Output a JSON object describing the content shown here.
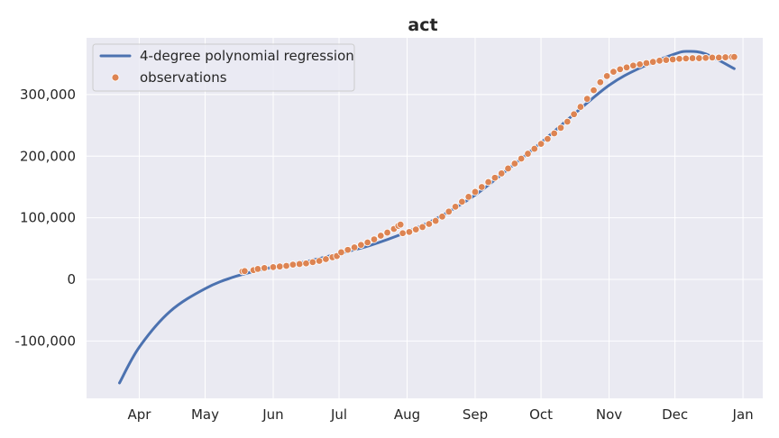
{
  "chart_data": {
    "type": "line",
    "title": "act",
    "xlabel": "",
    "ylabel": "",
    "x_axis": {
      "type": "date",
      "range": [
        "2020-03-08",
        "2021-01-10"
      ],
      "ticks": [
        {
          "date": "2020-04-01",
          "label": "Apr"
        },
        {
          "date": "2020-05-01",
          "label": "May"
        },
        {
          "date": "2020-06-01",
          "label": "Jun"
        },
        {
          "date": "2020-07-01",
          "label": "Jul"
        },
        {
          "date": "2020-08-01",
          "label": "Aug"
        },
        {
          "date": "2020-09-01",
          "label": "Sep"
        },
        {
          "date": "2020-10-01",
          "label": "Oct"
        },
        {
          "date": "2020-11-01",
          "label": "Nov"
        },
        {
          "date": "2020-12-01",
          "label": "Dec"
        },
        {
          "date": "2021-01-01",
          "label": "Jan"
        }
      ]
    },
    "y_axis": {
      "range": [
        -193000,
        392000
      ],
      "ticks": [
        {
          "value": -100000,
          "label": "-100,000"
        },
        {
          "value": 0,
          "label": "0"
        },
        {
          "value": 100000,
          "label": "100,000"
        },
        {
          "value": 200000,
          "label": "200,000"
        },
        {
          "value": 300000,
          "label": "300,000"
        }
      ]
    },
    "grid": true,
    "legend": {
      "placement": "top-left",
      "entries": [
        {
          "label": "4-degree polynomial regression",
          "kind": "line",
          "color": "#4c72b0"
        },
        {
          "label": "observations",
          "kind": "marker",
          "color": "#dd8452"
        }
      ]
    },
    "series": [
      {
        "name": "4-degree polynomial regression",
        "kind": "line",
        "color": "#4c72b0",
        "points": [
          [
            "2020-03-23",
            -168000
          ],
          [
            "2020-04-01",
            -110000
          ],
          [
            "2020-04-15",
            -52000
          ],
          [
            "2020-05-01",
            -15000
          ],
          [
            "2020-05-15",
            5000
          ],
          [
            "2020-06-01",
            20000
          ],
          [
            "2020-06-15",
            28000
          ],
          [
            "2020-07-01",
            42000
          ],
          [
            "2020-07-15",
            55000
          ],
          [
            "2020-08-01",
            77000
          ],
          [
            "2020-08-15",
            100000
          ],
          [
            "2020-09-01",
            137000
          ],
          [
            "2020-09-15",
            176000
          ],
          [
            "2020-10-01",
            222000
          ],
          [
            "2020-10-15",
            265000
          ],
          [
            "2020-11-01",
            315000
          ],
          [
            "2020-11-15",
            343000
          ],
          [
            "2020-12-01",
            366000
          ],
          [
            "2020-12-07",
            370000
          ],
          [
            "2020-12-15",
            366000
          ],
          [
            "2020-12-28",
            342000
          ]
        ]
      },
      {
        "name": "observations",
        "kind": "scatter",
        "color": "#dd8452",
        "points": [
          [
            "2020-05-18",
            13000
          ],
          [
            "2020-05-19",
            13500
          ],
          [
            "2020-05-23",
            15000
          ],
          [
            "2020-05-25",
            17000
          ],
          [
            "2020-05-28",
            18500
          ],
          [
            "2020-06-01",
            20000
          ],
          [
            "2020-06-04",
            21000
          ],
          [
            "2020-06-07",
            22000
          ],
          [
            "2020-06-10",
            24000
          ],
          [
            "2020-06-13",
            25000
          ],
          [
            "2020-06-16",
            26000
          ],
          [
            "2020-06-19",
            28000
          ],
          [
            "2020-06-22",
            30000
          ],
          [
            "2020-06-25",
            33000
          ],
          [
            "2020-06-28",
            36000
          ],
          [
            "2020-06-30",
            38000
          ],
          [
            "2020-07-02",
            44000
          ],
          [
            "2020-07-05",
            48000
          ],
          [
            "2020-07-08",
            52000
          ],
          [
            "2020-07-11",
            56000
          ],
          [
            "2020-07-14",
            60000
          ],
          [
            "2020-07-17",
            65000
          ],
          [
            "2020-07-20",
            71000
          ],
          [
            "2020-07-23",
            76000
          ],
          [
            "2020-07-26",
            82000
          ],
          [
            "2020-07-28",
            87000
          ],
          [
            "2020-07-29",
            89000
          ],
          [
            "2020-07-30",
            75000
          ],
          [
            "2020-08-02",
            77000
          ],
          [
            "2020-08-05",
            81000
          ],
          [
            "2020-08-08",
            85000
          ],
          [
            "2020-08-11",
            90000
          ],
          [
            "2020-08-14",
            95000
          ],
          [
            "2020-08-17",
            102000
          ],
          [
            "2020-08-20",
            110000
          ],
          [
            "2020-08-23",
            118000
          ],
          [
            "2020-08-26",
            126000
          ],
          [
            "2020-08-29",
            134000
          ],
          [
            "2020-09-01",
            142000
          ],
          [
            "2020-09-04",
            150000
          ],
          [
            "2020-09-07",
            158000
          ],
          [
            "2020-09-10",
            165000
          ],
          [
            "2020-09-13",
            172000
          ],
          [
            "2020-09-16",
            180000
          ],
          [
            "2020-09-19",
            188000
          ],
          [
            "2020-09-22",
            196000
          ],
          [
            "2020-09-25",
            204000
          ],
          [
            "2020-09-28",
            212000
          ],
          [
            "2020-10-01",
            220000
          ],
          [
            "2020-10-04",
            228000
          ],
          [
            "2020-10-07",
            237000
          ],
          [
            "2020-10-10",
            246000
          ],
          [
            "2020-10-13",
            256000
          ],
          [
            "2020-10-16",
            268000
          ],
          [
            "2020-10-19",
            280000
          ],
          [
            "2020-10-22",
            293000
          ],
          [
            "2020-10-25",
            307000
          ],
          [
            "2020-10-28",
            320000
          ],
          [
            "2020-10-31",
            330000
          ],
          [
            "2020-11-03",
            337000
          ],
          [
            "2020-11-06",
            341000
          ],
          [
            "2020-11-09",
            344000
          ],
          [
            "2020-11-12",
            347000
          ],
          [
            "2020-11-15",
            349000
          ],
          [
            "2020-11-18",
            351000
          ],
          [
            "2020-11-21",
            353000
          ],
          [
            "2020-11-24",
            355000
          ],
          [
            "2020-11-27",
            356000
          ],
          [
            "2020-11-30",
            357000
          ],
          [
            "2020-12-03",
            358000
          ],
          [
            "2020-12-06",
            358500
          ],
          [
            "2020-12-09",
            359000
          ],
          [
            "2020-12-12",
            359000
          ],
          [
            "2020-12-15",
            359500
          ],
          [
            "2020-12-18",
            360000
          ],
          [
            "2020-12-21",
            360000
          ],
          [
            "2020-12-24",
            360500
          ],
          [
            "2020-12-27",
            361000
          ],
          [
            "2020-12-28",
            361000
          ]
        ]
      }
    ]
  }
}
